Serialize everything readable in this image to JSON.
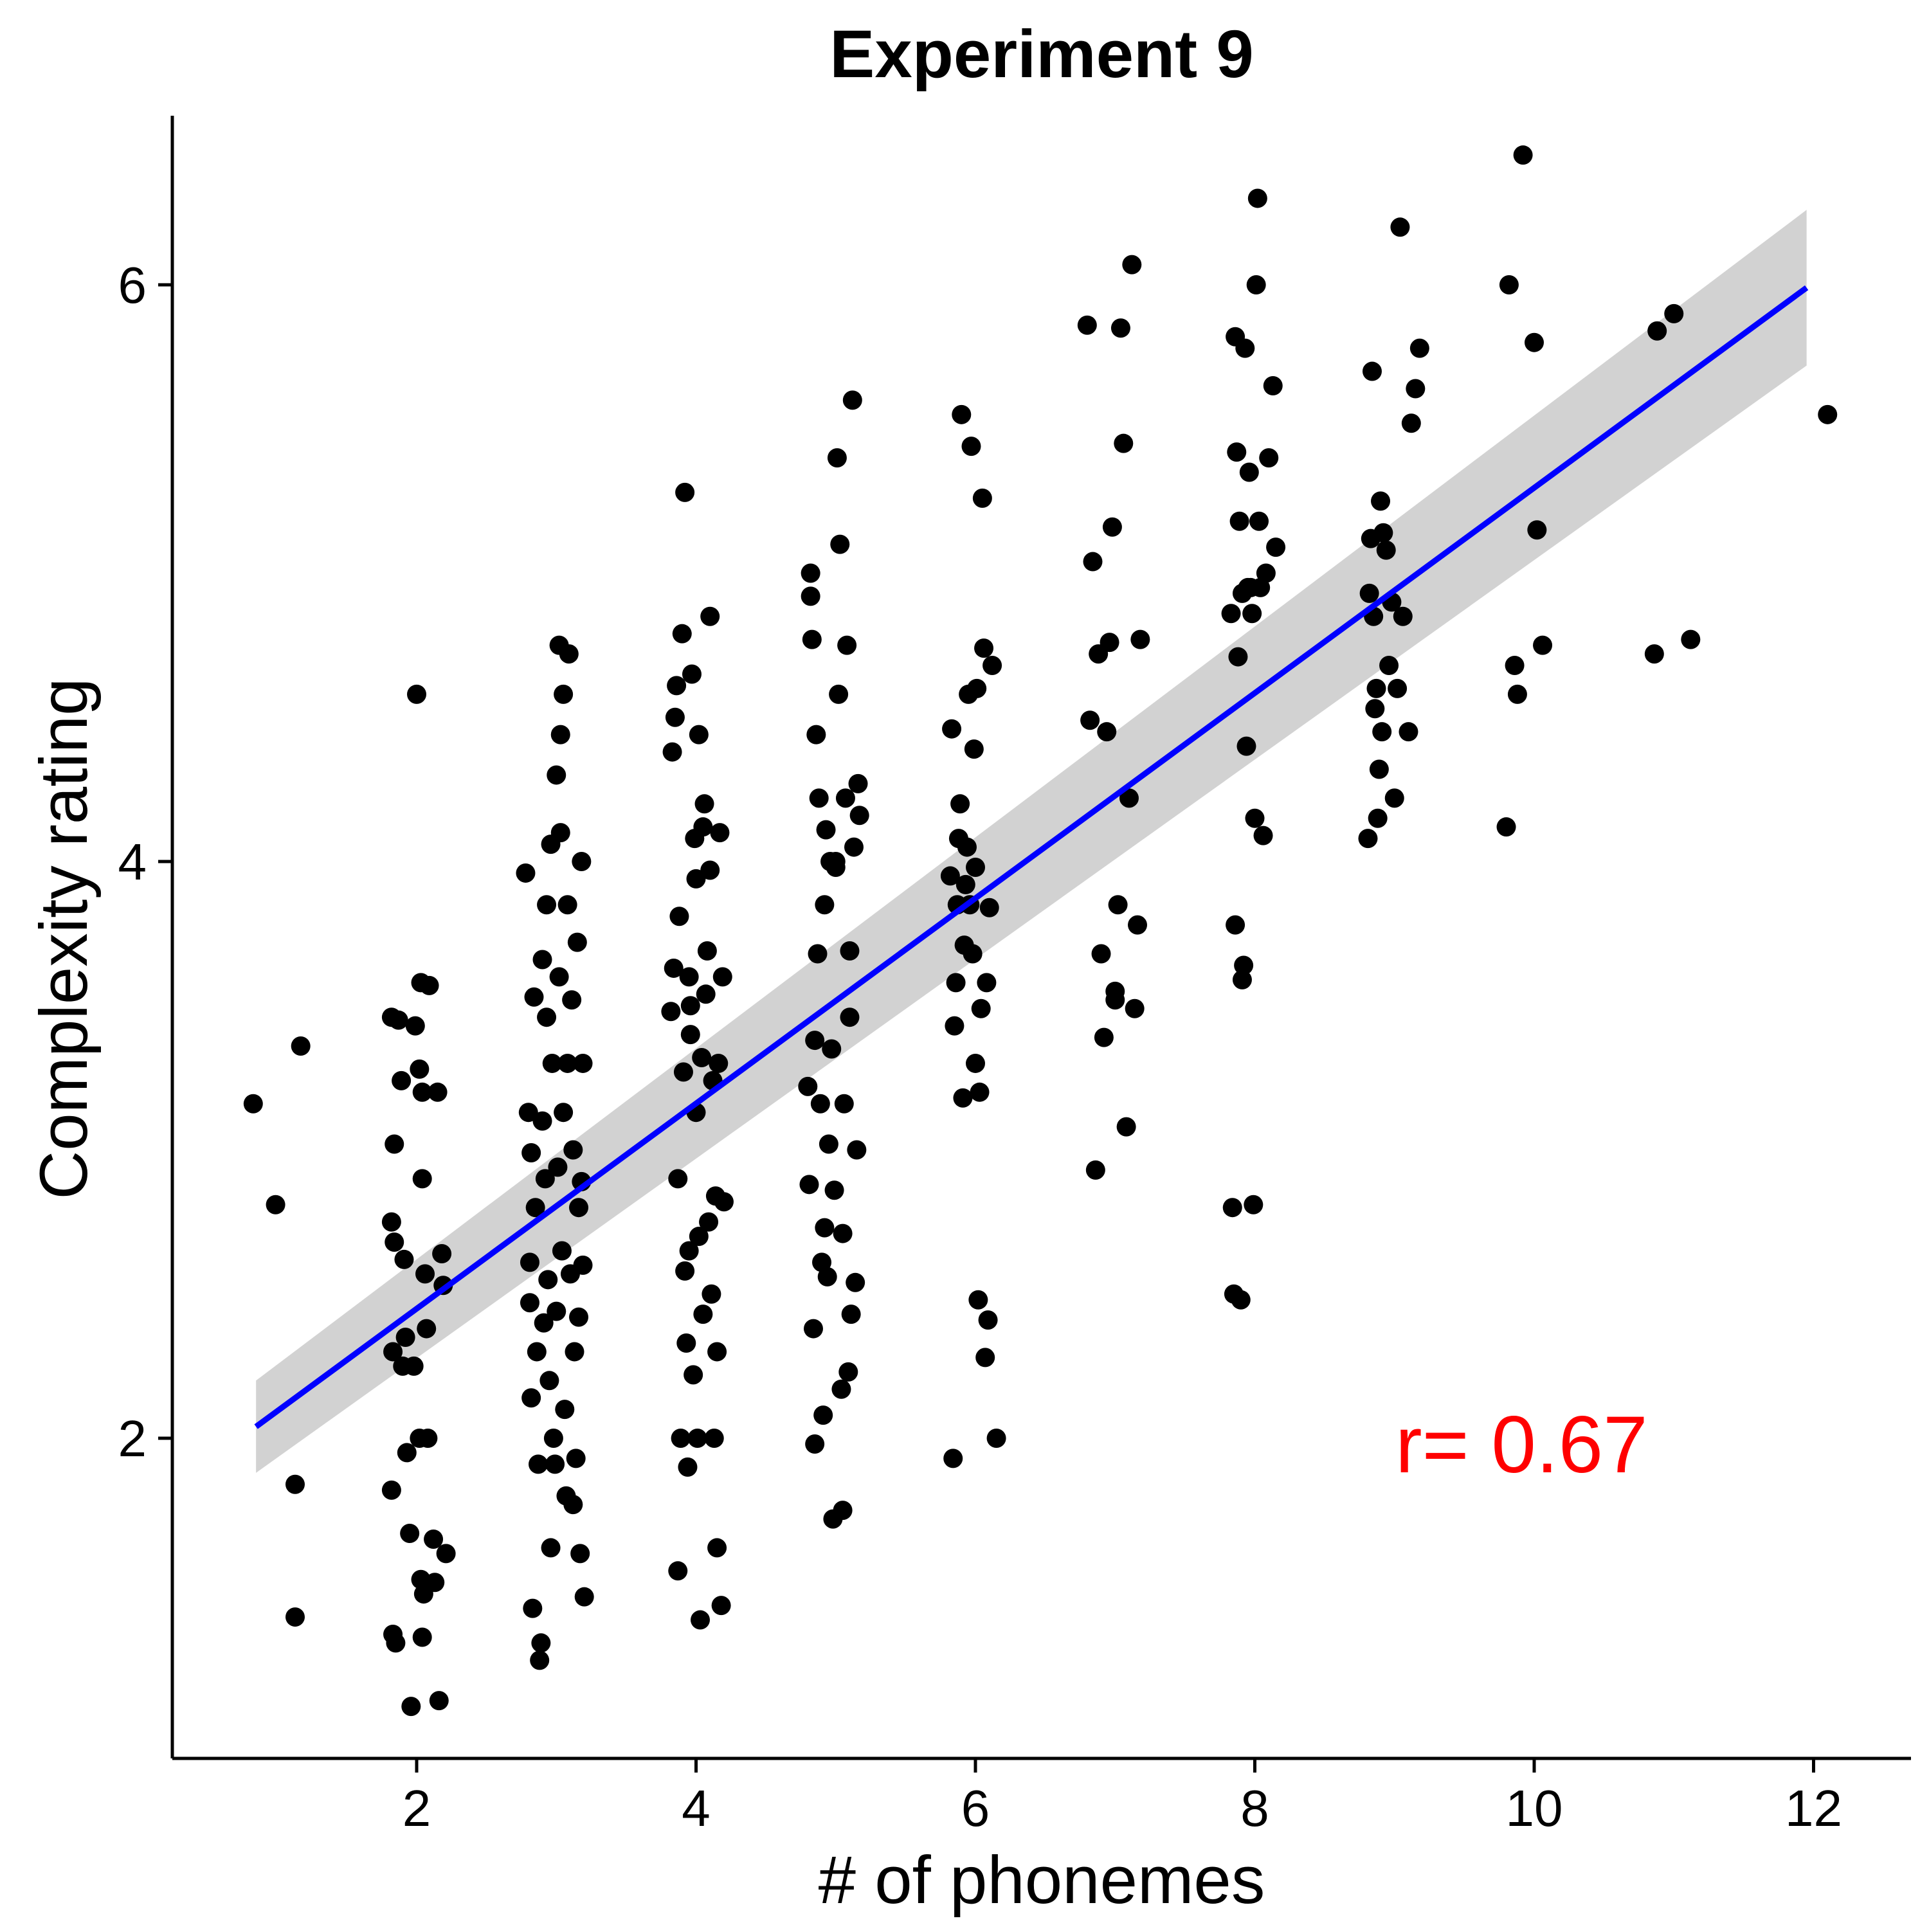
{
  "chart_data": {
    "type": "scatter",
    "title": "Experiment 9",
    "xlabel": "# of phonemes",
    "ylabel": "Complexity rating",
    "xlim": [
      0.3,
      12.8
    ],
    "ylim": [
      0.9,
      6.6
    ],
    "x_ticks": [
      2,
      4,
      6,
      8,
      10,
      12
    ],
    "y_ticks": [
      2,
      4,
      6
    ],
    "annotation": "r= 0.67",
    "colors": {
      "points": "#000000",
      "fit_line": "#0000ff",
      "band": "#bfbfbf",
      "annotation": "#ff0000"
    },
    "grid": false,
    "legend": false,
    "fit": {
      "x_start": 0.85,
      "x_end": 11.95,
      "y_start": 2.04,
      "y_end": 5.99,
      "ci_low_start": 1.88,
      "ci_high_start": 2.2,
      "ci_low_end": 5.72,
      "ci_high_end": 6.26
    },
    "points": [
      [
        0.83,
        3.16
      ],
      [
        0.99,
        2.81
      ],
      [
        1.13,
        1.84
      ],
      [
        1.13,
        1.38
      ],
      [
        1.17,
        3.36
      ],
      [
        1.82,
        3.46
      ],
      [
        1.82,
        2.75
      ],
      [
        1.84,
        2.68
      ],
      [
        1.83,
        2.3
      ],
      [
        1.82,
        1.82
      ],
      [
        1.83,
        1.32
      ],
      [
        1.85,
        1.29
      ],
      [
        1.84,
        3.02
      ],
      [
        1.87,
        3.45
      ],
      [
        1.89,
        3.24
      ],
      [
        1.91,
        2.62
      ],
      [
        1.92,
        2.35
      ],
      [
        1.9,
        2.25
      ],
      [
        1.93,
        1.95
      ],
      [
        1.95,
        1.67
      ],
      [
        1.96,
        1.07
      ],
      [
        1.99,
        3.43
      ],
      [
        2.0,
        4.58
      ],
      [
        2.02,
        3.28
      ],
      [
        2.03,
        3.58
      ],
      [
        2.04,
        3.2
      ],
      [
        2.04,
        2.9
      ],
      [
        2.02,
        2.0
      ],
      [
        2.03,
        1.51
      ],
      [
        2.04,
        1.31
      ],
      [
        2.05,
        1.46
      ],
      [
        2.06,
        2.57
      ],
      [
        2.07,
        2.38
      ],
      [
        2.08,
        2.0
      ],
      [
        2.09,
        3.57
      ],
      [
        2.12,
        1.65
      ],
      [
        2.13,
        1.5
      ],
      [
        2.15,
        3.2
      ],
      [
        2.18,
        2.64
      ],
      [
        2.19,
        2.53
      ],
      [
        2.21,
        1.6
      ],
      [
        2.16,
        1.09
      ],
      [
        1.98,
        2.25
      ],
      [
        2.78,
        3.96
      ],
      [
        2.8,
        3.13
      ],
      [
        2.82,
        2.99
      ],
      [
        2.81,
        2.61
      ],
      [
        2.81,
        2.47
      ],
      [
        2.82,
        2.14
      ],
      [
        2.83,
        1.41
      ],
      [
        2.84,
        3.53
      ],
      [
        2.85,
        2.8
      ],
      [
        2.86,
        2.3
      ],
      [
        2.87,
        1.91
      ],
      [
        2.88,
        1.23
      ],
      [
        2.89,
        1.29
      ],
      [
        2.9,
        3.66
      ],
      [
        2.9,
        3.1
      ],
      [
        2.91,
        2.4
      ],
      [
        2.92,
        2.9
      ],
      [
        2.93,
        3.85
      ],
      [
        2.94,
        2.55
      ],
      [
        2.95,
        2.2
      ],
      [
        2.96,
        1.62
      ],
      [
        2.97,
        3.3
      ],
      [
        2.98,
        2.0
      ],
      [
        2.99,
        1.91
      ],
      [
        3.0,
        2.44
      ],
      [
        3.01,
        2.94
      ],
      [
        3.02,
        3.6
      ],
      [
        3.03,
        4.1
      ],
      [
        3.04,
        2.65
      ],
      [
        3.05,
        3.13
      ],
      [
        3.05,
        4.58
      ],
      [
        3.06,
        2.1
      ],
      [
        3.07,
        1.8
      ],
      [
        3.08,
        3.85
      ],
      [
        3.09,
        4.72
      ],
      [
        3.1,
        2.57
      ],
      [
        3.11,
        3.52
      ],
      [
        3.12,
        3.0
      ],
      [
        3.13,
        2.3
      ],
      [
        3.14,
        1.93
      ],
      [
        3.15,
        3.72
      ],
      [
        3.16,
        2.8
      ],
      [
        3.17,
        1.6
      ],
      [
        3.18,
        4.0
      ],
      [
        3.19,
        2.6
      ],
      [
        3.19,
        3.3
      ],
      [
        3.2,
        1.45
      ],
      [
        3.02,
        4.75
      ],
      [
        2.93,
        3.46
      ],
      [
        2.96,
        4.06
      ],
      [
        3.0,
        4.3
      ],
      [
        3.03,
        4.44
      ],
      [
        3.08,
        3.3
      ],
      [
        3.12,
        1.77
      ],
      [
        3.16,
        2.42
      ],
      [
        3.18,
        2.89
      ],
      [
        3.82,
        3.48
      ],
      [
        3.83,
        4.38
      ],
      [
        3.84,
        3.63
      ],
      [
        3.85,
        4.5
      ],
      [
        3.86,
        4.61
      ],
      [
        3.87,
        2.9
      ],
      [
        3.88,
        3.81
      ],
      [
        3.89,
        2.0
      ],
      [
        3.9,
        4.79
      ],
      [
        3.91,
        3.27
      ],
      [
        3.92,
        5.28
      ],
      [
        3.93,
        2.33
      ],
      [
        3.94,
        1.9
      ],
      [
        3.95,
        2.65
      ],
      [
        3.96,
        3.5
      ],
      [
        3.97,
        4.65
      ],
      [
        3.98,
        2.22
      ],
      [
        3.99,
        4.08
      ],
      [
        4.0,
        3.94
      ],
      [
        4.01,
        2.0
      ],
      [
        4.02,
        4.44
      ],
      [
        4.03,
        1.37
      ],
      [
        4.04,
        3.32
      ],
      [
        4.05,
        2.43
      ],
      [
        4.06,
        4.2
      ],
      [
        4.07,
        3.54
      ],
      [
        4.08,
        3.69
      ],
      [
        4.09,
        2.75
      ],
      [
        4.1,
        4.85
      ],
      [
        4.11,
        2.5
      ],
      [
        4.12,
        3.24
      ],
      [
        4.13,
        2.0
      ],
      [
        4.14,
        2.84
      ],
      [
        4.15,
        1.62
      ],
      [
        4.16,
        3.3
      ],
      [
        4.17,
        4.1
      ],
      [
        4.18,
        1.42
      ],
      [
        4.19,
        3.6
      ],
      [
        4.2,
        2.82
      ],
      [
        3.87,
        1.54
      ],
      [
        3.95,
        3.6
      ],
      [
        4.0,
        3.13
      ],
      [
        4.05,
        4.12
      ],
      [
        4.1,
        3.97
      ],
      [
        4.15,
        2.3
      ],
      [
        3.92,
        2.58
      ],
      [
        3.96,
        3.4
      ],
      [
        4.02,
        2.7
      ],
      [
        4.8,
        3.22
      ],
      [
        4.81,
        2.88
      ],
      [
        4.82,
        5.0
      ],
      [
        4.83,
        4.77
      ],
      [
        4.84,
        2.38
      ],
      [
        4.85,
        3.38
      ],
      [
        4.86,
        4.44
      ],
      [
        4.87,
        3.68
      ],
      [
        4.88,
        4.22
      ],
      [
        4.89,
        3.16
      ],
      [
        4.9,
        2.61
      ],
      [
        4.91,
        2.08
      ],
      [
        4.92,
        3.85
      ],
      [
        4.93,
        4.11
      ],
      [
        4.94,
        2.56
      ],
      [
        4.95,
        3.02
      ],
      [
        4.96,
        4.0
      ],
      [
        4.97,
        3.35
      ],
      [
        4.98,
        1.72
      ],
      [
        4.99,
        2.86
      ],
      [
        5.0,
        3.98
      ],
      [
        5.01,
        5.4
      ],
      [
        5.02,
        4.58
      ],
      [
        5.03,
        5.1
      ],
      [
        5.04,
        2.17
      ],
      [
        5.05,
        2.71
      ],
      [
        5.06,
        3.16
      ],
      [
        5.07,
        4.22
      ],
      [
        5.08,
        4.75
      ],
      [
        5.09,
        2.23
      ],
      [
        5.1,
        3.46
      ],
      [
        5.11,
        2.43
      ],
      [
        5.12,
        5.6
      ],
      [
        5.13,
        4.05
      ],
      [
        5.14,
        2.54
      ],
      [
        5.15,
        3.0
      ],
      [
        5.16,
        4.27
      ],
      [
        5.17,
        4.16
      ],
      [
        4.82,
        4.92
      ],
      [
        4.85,
        1.98
      ],
      [
        4.92,
        2.73
      ],
      [
        5.0,
        4.0
      ],
      [
        5.05,
        1.75
      ],
      [
        5.1,
        3.69
      ],
      [
        5.82,
        3.95
      ],
      [
        5.83,
        4.46
      ],
      [
        5.84,
        1.93
      ],
      [
        5.85,
        3.43
      ],
      [
        5.86,
        3.58
      ],
      [
        5.87,
        3.85
      ],
      [
        5.88,
        4.08
      ],
      [
        5.89,
        4.2
      ],
      [
        5.9,
        5.55
      ],
      [
        5.91,
        3.18
      ],
      [
        5.92,
        3.71
      ],
      [
        5.93,
        3.92
      ],
      [
        5.94,
        4.05
      ],
      [
        5.95,
        4.58
      ],
      [
        5.96,
        3.85
      ],
      [
        5.97,
        5.44
      ],
      [
        5.98,
        3.68
      ],
      [
        5.99,
        4.39
      ],
      [
        6.0,
        3.3
      ],
      [
        6.01,
        4.6
      ],
      [
        6.02,
        2.48
      ],
      [
        6.03,
        3.2
      ],
      [
        6.04,
        3.49
      ],
      [
        6.05,
        5.26
      ],
      [
        6.06,
        4.74
      ],
      [
        6.07,
        2.28
      ],
      [
        6.08,
        3.58
      ],
      [
        6.09,
        2.41
      ],
      [
        6.1,
        3.84
      ],
      [
        6.12,
        4.68
      ],
      [
        6.15,
        2.0
      ],
      [
        6.0,
        3.98
      ],
      [
        6.8,
        5.86
      ],
      [
        6.82,
        4.49
      ],
      [
        6.84,
        5.04
      ],
      [
        6.86,
        2.93
      ],
      [
        6.88,
        4.72
      ],
      [
        6.9,
        3.68
      ],
      [
        6.92,
        3.39
      ],
      [
        6.94,
        4.45
      ],
      [
        6.96,
        4.76
      ],
      [
        6.98,
        5.16
      ],
      [
        7.0,
        3.55
      ],
      [
        7.02,
        3.85
      ],
      [
        7.04,
        5.85
      ],
      [
        7.06,
        5.45
      ],
      [
        7.08,
        3.08
      ],
      [
        7.1,
        4.22
      ],
      [
        7.12,
        6.07
      ],
      [
        7.14,
        3.49
      ],
      [
        7.16,
        3.78
      ],
      [
        7.18,
        4.77
      ],
      [
        7.0,
        3.52
      ],
      [
        7.83,
        4.86
      ],
      [
        7.84,
        2.8
      ],
      [
        7.85,
        2.5
      ],
      [
        7.86,
        3.78
      ],
      [
        7.87,
        5.42
      ],
      [
        7.88,
        4.71
      ],
      [
        7.89,
        5.18
      ],
      [
        7.9,
        2.48
      ],
      [
        7.91,
        4.93
      ],
      [
        7.92,
        3.64
      ],
      [
        7.93,
        5.78
      ],
      [
        7.94,
        4.4
      ],
      [
        7.95,
        4.95
      ],
      [
        7.96,
        5.35
      ],
      [
        7.97,
        4.95
      ],
      [
        7.98,
        4.86
      ],
      [
        7.99,
        2.81
      ],
      [
        8.0,
        4.15
      ],
      [
        8.01,
        6.0
      ],
      [
        8.02,
        6.3
      ],
      [
        8.03,
        5.18
      ],
      [
        8.04,
        4.95
      ],
      [
        8.06,
        4.09
      ],
      [
        8.08,
        5.0
      ],
      [
        8.1,
        5.4
      ],
      [
        8.13,
        5.65
      ],
      [
        8.15,
        5.09
      ],
      [
        7.86,
        5.82
      ],
      [
        7.91,
        3.59
      ],
      [
        8.81,
        4.08
      ],
      [
        8.82,
        4.93
      ],
      [
        8.83,
        5.12
      ],
      [
        8.84,
        5.7
      ],
      [
        8.85,
        4.85
      ],
      [
        8.86,
        4.53
      ],
      [
        8.87,
        4.6
      ],
      [
        8.88,
        4.15
      ],
      [
        8.89,
        4.32
      ],
      [
        8.9,
        5.25
      ],
      [
        8.91,
        4.45
      ],
      [
        8.92,
        5.14
      ],
      [
        8.94,
        5.08
      ],
      [
        8.96,
        4.68
      ],
      [
        8.98,
        4.9
      ],
      [
        9.0,
        4.22
      ],
      [
        9.02,
        4.6
      ],
      [
        9.04,
        6.2
      ],
      [
        9.06,
        4.85
      ],
      [
        9.1,
        4.45
      ],
      [
        9.12,
        5.52
      ],
      [
        9.15,
        5.64
      ],
      [
        9.18,
        5.78
      ],
      [
        9.8,
        4.12
      ],
      [
        9.82,
        6.0
      ],
      [
        9.86,
        4.68
      ],
      [
        9.88,
        4.58
      ],
      [
        9.92,
        6.45
      ],
      [
        10.0,
        5.8
      ],
      [
        10.02,
        5.15
      ],
      [
        10.06,
        4.75
      ],
      [
        10.86,
        4.72
      ],
      [
        10.88,
        5.84
      ],
      [
        11.0,
        5.9
      ],
      [
        11.12,
        4.77
      ],
      [
        12.1,
        5.55
      ]
    ]
  }
}
